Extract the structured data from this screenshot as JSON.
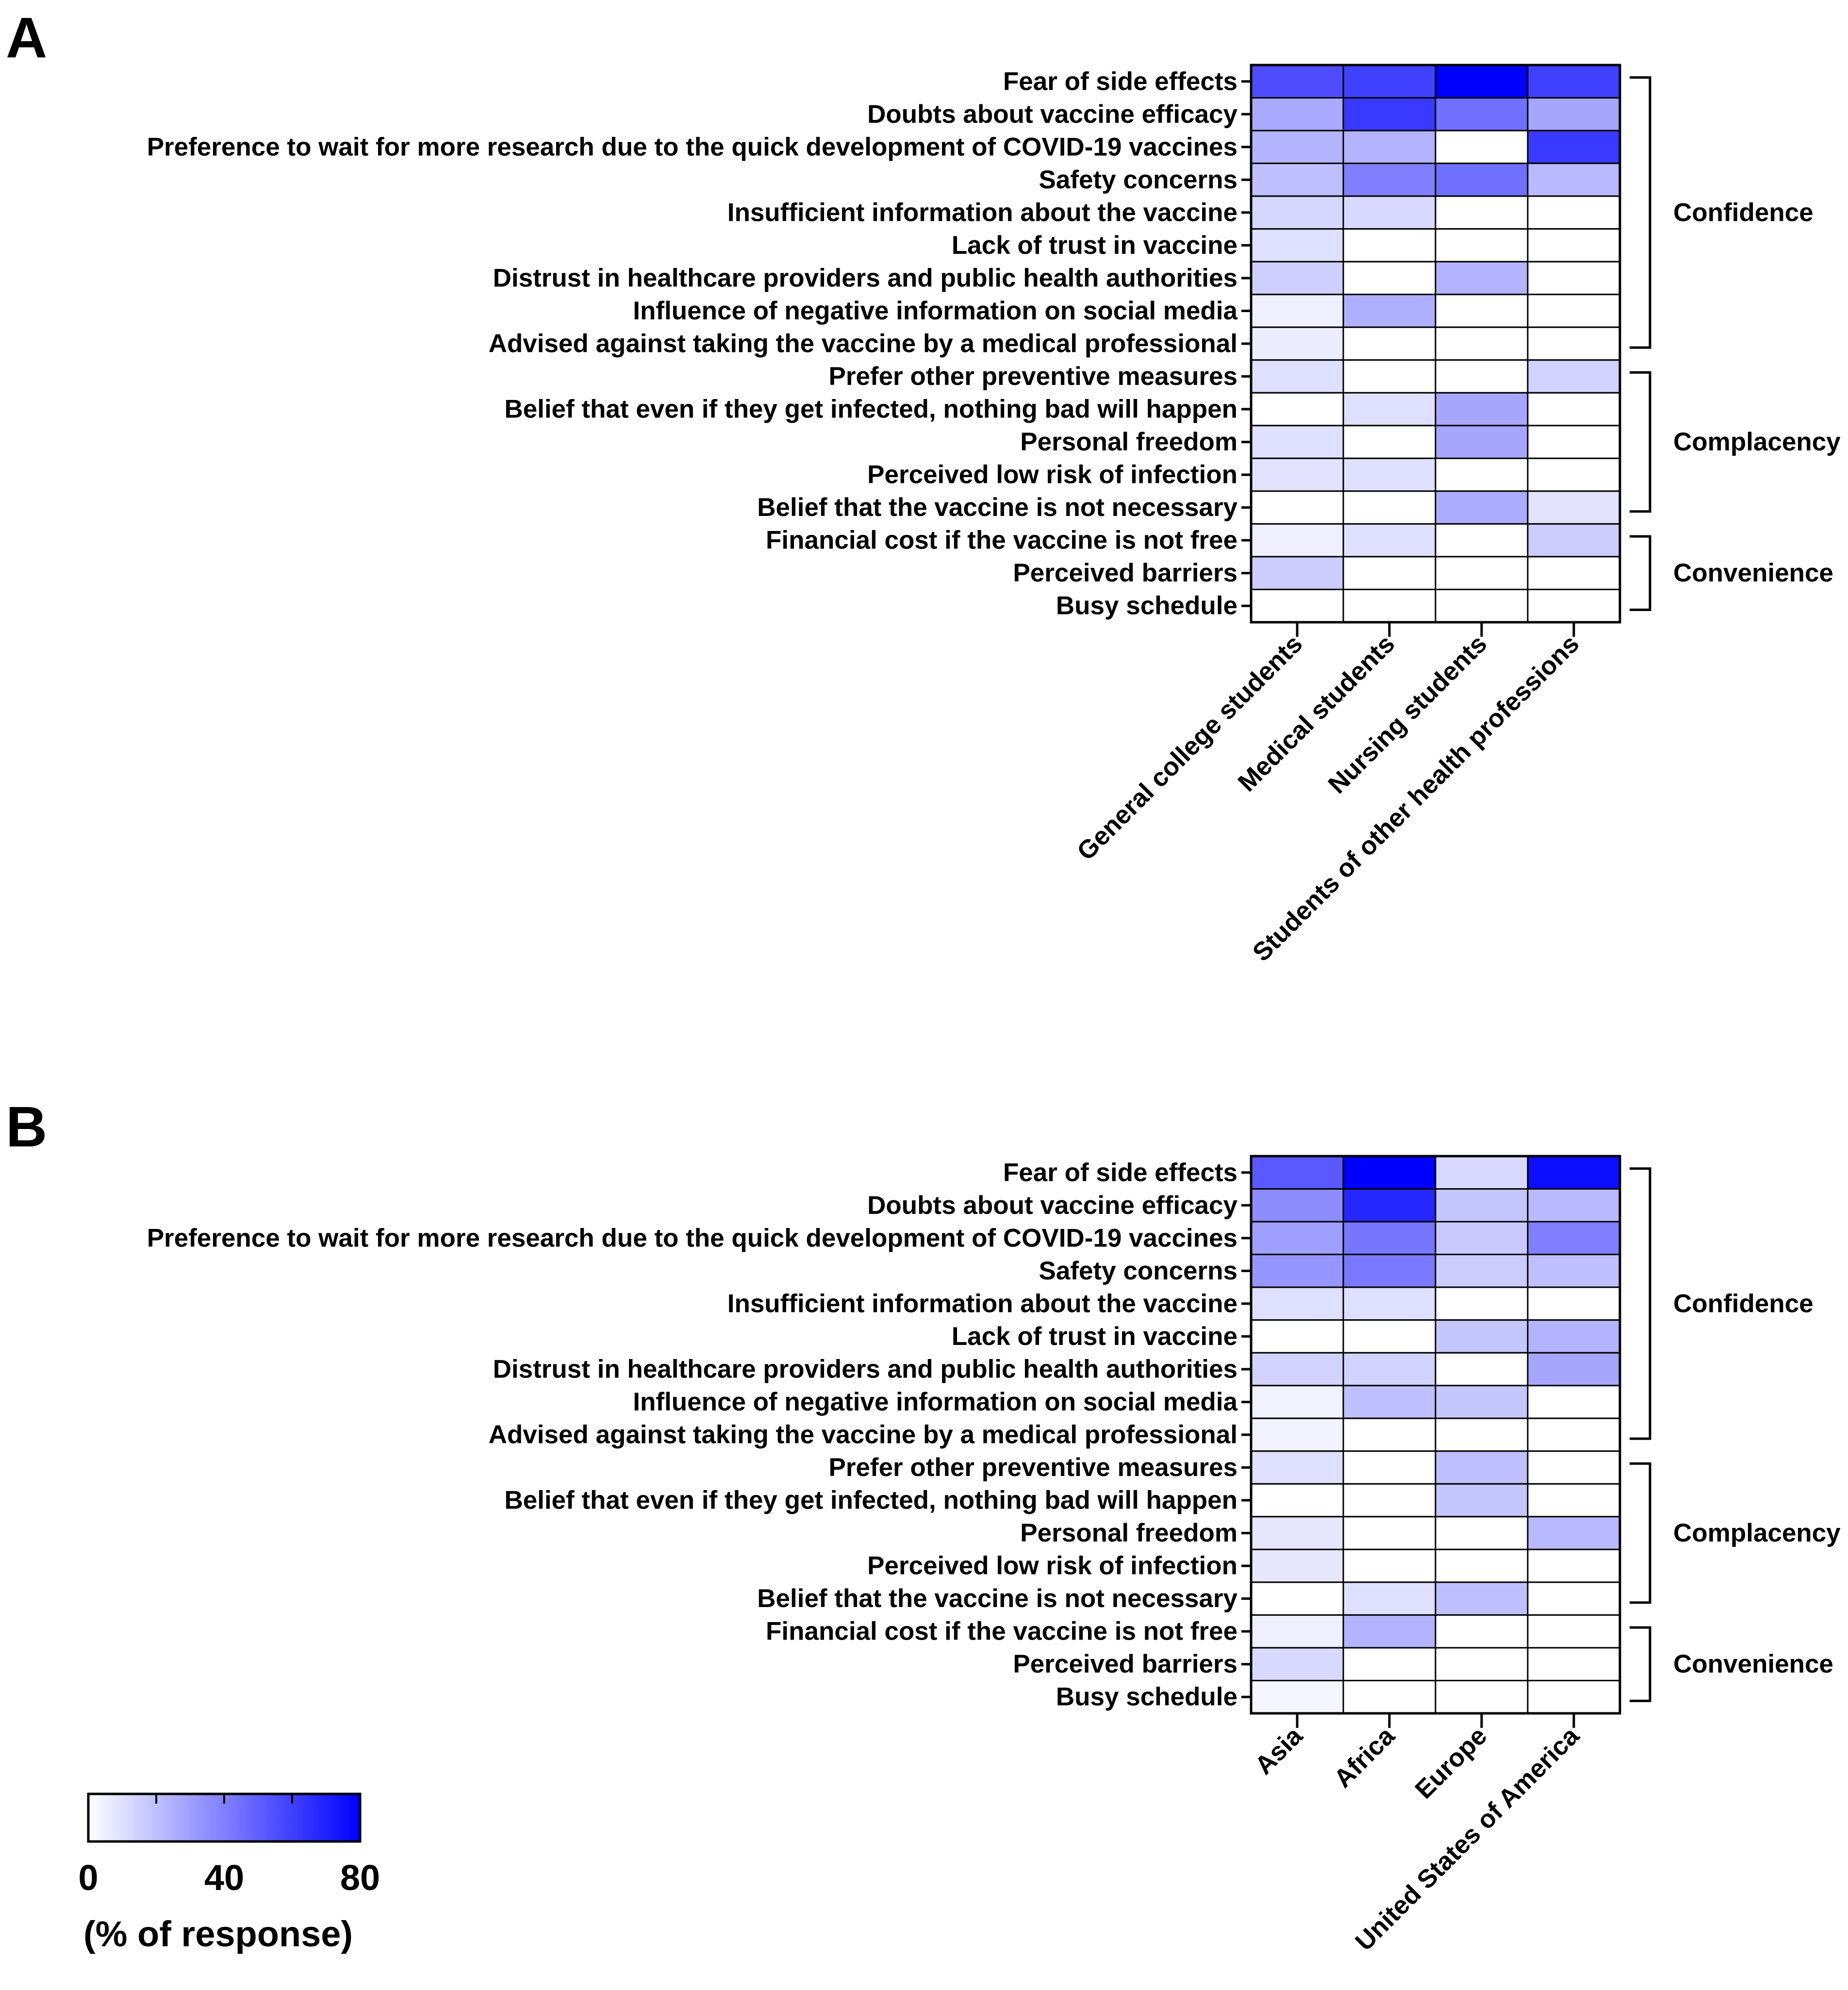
{
  "colors": {
    "low": "#ffffff",
    "high": "#0000ff",
    "line": "#000000"
  },
  "chart_data": [
    {
      "type": "heatmap",
      "panel_label": "A",
      "rows": [
        "Fear of side effects",
        "Doubts about vaccine efficacy",
        "Preference to wait for more research due to the quick development of COVID-19 vaccines",
        "Safety concerns",
        "Insufficient information about the vaccine",
        "Lack of trust in vaccine",
        "Distrust in healthcare providers and public health authorities",
        "Influence of negative information on social media",
        "Advised against taking the vaccine by a medical professional",
        "Prefer other preventive measures",
        "Belief that even if they get infected, nothing bad will happen",
        "Personal freedom",
        "Perceived low risk of infection",
        "Belief that the vaccine is not necessary",
        "Financial cost if the vaccine is not free",
        "Perceived barriers",
        "Busy schedule"
      ],
      "columns": [
        "General college students",
        "Medical students",
        "Nursing students",
        "Students of other health professions"
      ],
      "values": [
        [
          56,
          60,
          80,
          60
        ],
        [
          27,
          62,
          45,
          28
        ],
        [
          24,
          24,
          0,
          62
        ],
        [
          20,
          40,
          45,
          22
        ],
        [
          13,
          12,
          0,
          0
        ],
        [
          10,
          0,
          0,
          0
        ],
        [
          15,
          0,
          24,
          0
        ],
        [
          5,
          25,
          0,
          0
        ],
        [
          6,
          0,
          0,
          0
        ],
        [
          10,
          0,
          0,
          14
        ],
        [
          0,
          10,
          28,
          0
        ],
        [
          10,
          0,
          28,
          0
        ],
        [
          9,
          10,
          0,
          0
        ],
        [
          0,
          0,
          26,
          9
        ],
        [
          5,
          10,
          0,
          16
        ],
        [
          16,
          0,
          0,
          0
        ],
        [
          0,
          0,
          0,
          0
        ]
      ],
      "groups": [
        {
          "label": "Confidence",
          "from": 0,
          "to": 8
        },
        {
          "label": "Complacency",
          "from": 9,
          "to": 13
        },
        {
          "label": "Convenience",
          "from": 14,
          "to": 16
        }
      ],
      "scale": [
        0,
        80
      ]
    },
    {
      "type": "heatmap",
      "panel_label": "B",
      "rows": [
        "Fear of side effects",
        "Doubts about vaccine efficacy",
        "Preference to wait for more research due to the quick development of COVID-19 vaccines",
        "Safety concerns",
        "Insufficient information about the vaccine",
        "Lack of trust in vaccine",
        "Distrust in healthcare providers and public health authorities",
        "Influence of negative information on social media",
        "Advised against taking the vaccine by a medical professional",
        "Prefer other preventive measures",
        "Belief that even if they get infected, nothing bad will happen",
        "Personal freedom",
        "Perceived low risk of infection",
        "Belief that the vaccine is not necessary",
        "Financial cost if the vaccine is not free",
        "Perceived barriers",
        "Busy schedule"
      ],
      "columns": [
        "Asia",
        "Africa",
        "Europe",
        "United States of America"
      ],
      "values": [
        [
          52,
          80,
          12,
          76
        ],
        [
          36,
          68,
          18,
          22
        ],
        [
          30,
          43,
          17,
          40
        ],
        [
          33,
          42,
          16,
          20
        ],
        [
          10,
          10,
          0,
          0
        ],
        [
          0,
          0,
          18,
          24
        ],
        [
          14,
          14,
          0,
          28
        ],
        [
          4,
          20,
          18,
          0
        ],
        [
          4,
          0,
          0,
          0
        ],
        [
          10,
          0,
          20,
          0
        ],
        [
          0,
          0,
          18,
          0
        ],
        [
          8,
          0,
          0,
          22
        ],
        [
          8,
          0,
          0,
          0
        ],
        [
          0,
          10,
          20,
          0
        ],
        [
          5,
          24,
          0,
          0
        ],
        [
          12,
          0,
          0,
          0
        ],
        [
          3,
          0,
          0,
          0
        ]
      ],
      "groups": [
        {
          "label": "Confidence",
          "from": 0,
          "to": 8
        },
        {
          "label": "Complacency",
          "from": 9,
          "to": 13
        },
        {
          "label": "Convenience",
          "from": 14,
          "to": 16
        }
      ],
      "scale": [
        0,
        80
      ]
    }
  ],
  "legend": {
    "ticks": [
      "0",
      "40",
      "80"
    ],
    "tick_values": [
      0,
      40,
      80
    ],
    "minor_ticks": [
      20,
      60
    ],
    "unit_label": "(% of response)"
  }
}
